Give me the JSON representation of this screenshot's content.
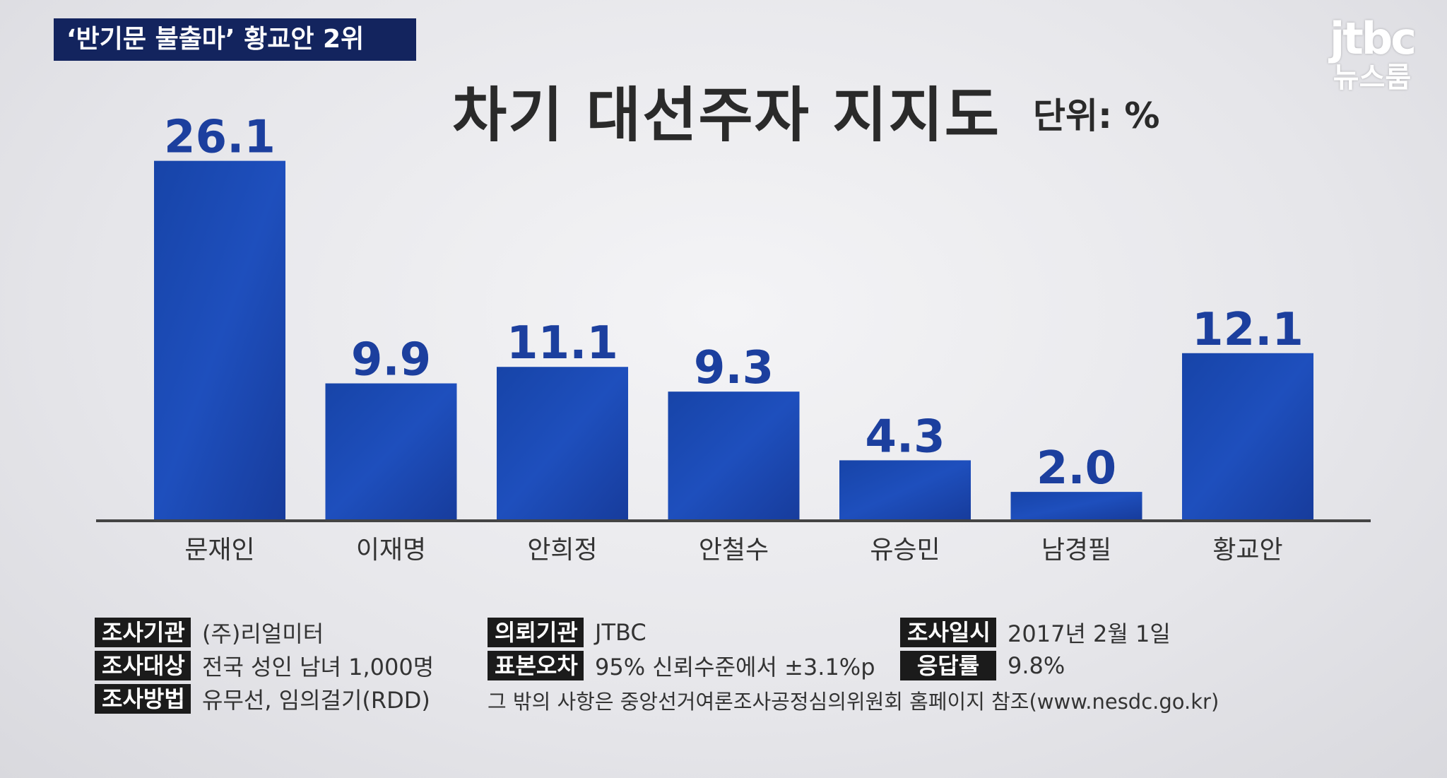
{
  "headline": "‘반기문 불출마’ 황교안 2위",
  "logo": {
    "main": "jtbc",
    "sub": "뉴스룸"
  },
  "colors": {
    "bar": "#1c46b0",
    "bar_dark": "#16389a",
    "value_label": "#1c3f9e",
    "headline_bg": "#13245e"
  },
  "chart_data": {
    "type": "bar",
    "title": "차기 대선주자 지지도",
    "unit_label": "단위: %",
    "categories": [
      "문재인",
      "이재명",
      "안희정",
      "안철수",
      "유승민",
      "남경필",
      "황교안"
    ],
    "values": [
      26.1,
      9.9,
      11.1,
      9.3,
      4.3,
      2.0,
      12.1
    ],
    "value_labels": [
      "26.1",
      "9.9",
      "11.1",
      "9.3",
      "4.3",
      "2.0",
      "12.1"
    ],
    "ylim": [
      0,
      30
    ],
    "grid": false,
    "legend": "none"
  },
  "survey": {
    "org_label": "조사기관",
    "org": "(주)리얼미터",
    "target_label": "조사대상",
    "target": "전국 성인 남녀 1,000명",
    "method_label": "조사방법",
    "method": "유무선, 임의걸기(RDD)",
    "client_label": "의뢰기관",
    "client": "JTBC",
    "error_label": "표본오차",
    "error": "95% 신뢰수준에서 ±3.1%p",
    "date_label": "조사일시",
    "date": "2017년 2월 1일",
    "response_label": "응답률",
    "response": "9.8%",
    "note": "그 밖의 사항은 중앙선거여론조사공정심의위원회 홈페이지 참조(www.nesdc.go.kr)"
  }
}
